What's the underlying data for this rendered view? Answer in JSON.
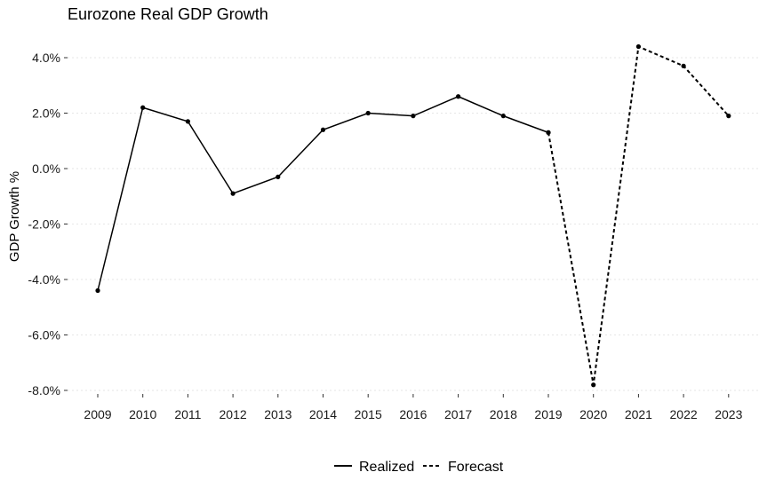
{
  "chart_data": {
    "type": "line",
    "title": "Eurozone Real GDP Growth",
    "xlabel": "",
    "ylabel": "GDP Growth %",
    "x": [
      "2009",
      "2010",
      "2011",
      "2012",
      "2013",
      "2014",
      "2015",
      "2016",
      "2017",
      "2018",
      "2019",
      "2020",
      "2021",
      "2022",
      "2023"
    ],
    "ylim": [
      -8.0,
      4.0
    ],
    "yticks": [
      4.0,
      2.0,
      0.0,
      -2.0,
      -4.0,
      -6.0,
      -8.0
    ],
    "ytick_labels": [
      "4.0%",
      "2.0%",
      "0.0%",
      "-2.0%",
      "-4.0%",
      "-6.0%",
      "-8.0%"
    ],
    "grid": "horizontal dotted",
    "legend_position": "bottom",
    "series": [
      {
        "name": "Realized",
        "style": "solid",
        "x": [
          "2009",
          "2010",
          "2011",
          "2012",
          "2013",
          "2014",
          "2015",
          "2016",
          "2017",
          "2018",
          "2019"
        ],
        "values": [
          -4.4,
          2.2,
          1.7,
          -0.9,
          -0.3,
          1.4,
          2.0,
          1.9,
          2.6,
          1.9,
          1.3
        ]
      },
      {
        "name": "Forecast",
        "style": "dashed",
        "x": [
          "2019",
          "2020",
          "2021",
          "2022",
          "2023"
        ],
        "values": [
          1.3,
          -7.8,
          4.4,
          3.7,
          1.9
        ]
      }
    ],
    "colors": {
      "line": "#000000",
      "grid": "#e6e6e6"
    }
  }
}
